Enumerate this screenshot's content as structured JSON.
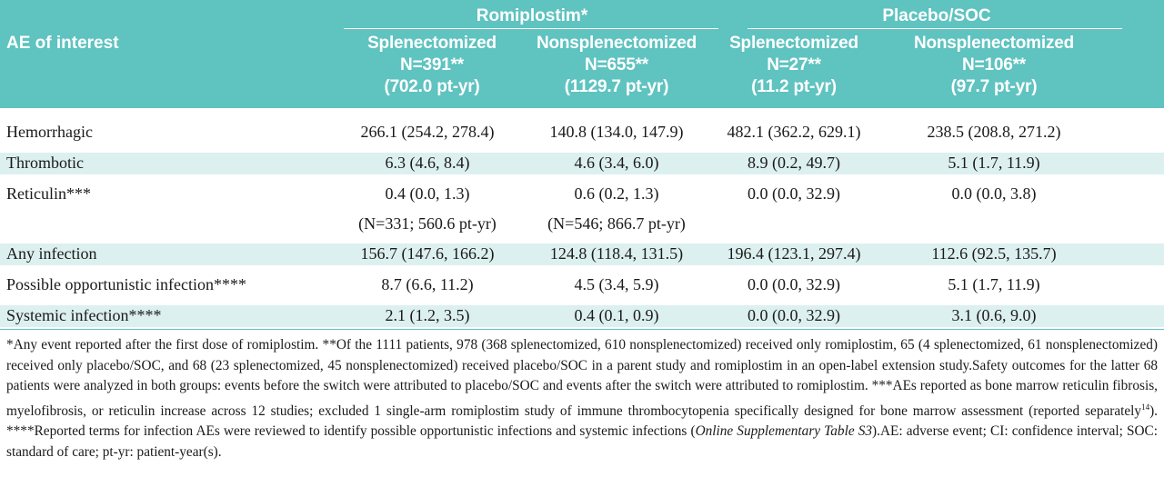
{
  "table": {
    "groups": [
      "Romiplostim*",
      "Placebo/SOC"
    ],
    "ae_header": "AE of interest",
    "columns": [
      {
        "name": "Splenectomized",
        "n": "N=391**",
        "pt": "(702.0 pt-yr)"
      },
      {
        "name": "Nonsplenectomized",
        "n": "N=655**",
        "pt": "(1129.7 pt-yr)"
      },
      {
        "name": "Splenectomized",
        "n": "N=27**",
        "pt": "(11.2 pt-yr)"
      },
      {
        "name": "Nonsplenectomized",
        "n": "N=106**",
        "pt": "(97.7 pt-yr)"
      }
    ],
    "rows": [
      {
        "label": "Hemorrhagic",
        "values": [
          "266.1 (254.2, 278.4)",
          "140.8 (134.0, 147.9)",
          "482.1 (362.2, 629.1)",
          "238.5 (208.8, 271.2)"
        ]
      },
      {
        "label": "Thrombotic",
        "values": [
          "6.3 (4.6, 8.4)",
          "4.6 (3.4, 6.0)",
          "8.9 (0.2, 49.7)",
          "5.1 (1.7, 11.9)"
        ]
      },
      {
        "label": "Reticulin***",
        "values": [
          "0.4 (0.0, 1.3)",
          "0.6 (0.2, 1.3)",
          "0.0 (0.0, 32.9)",
          "0.0 (0.0, 3.8)"
        ],
        "sub": [
          "(N=331; 560.6 pt-yr)",
          "(N=546; 866.7 pt-yr)"
        ]
      },
      {
        "label": "Any infection",
        "values": [
          "156.7 (147.6, 166.2)",
          "124.8 (118.4, 131.5)",
          "196.4 (123.1, 297.4)",
          "112.6 (92.5, 135.7)"
        ]
      },
      {
        "label": "Possible opportunistic infection****",
        "values": [
          "8.7 (6.6, 11.2)",
          "4.5 (3.4, 5.9)",
          "0.0 (0.0, 32.9)",
          "5.1 (1.7, 11.9)"
        ]
      },
      {
        "label": "Systemic infection****",
        "values": [
          "2.1 (1.2, 3.5)",
          "0.4 (0.1, 0.9)",
          "0.0 (0.0, 32.9)",
          "3.1 (0.6, 9.0)"
        ]
      }
    ]
  },
  "footnote": {
    "part1": "*Any event reported after the first dose of romiplostim. **Of the 1111 patients, 978 (368 splenectomized, 610 nonsplenectomized) received only romiplostim, 65 (4 splenectomized, 61 nonsplenectomized) received only placebo/SOC, and 68 (23 splenectomized, 45 nonsplenectomized) received placebo/SOC in a parent study and romiplostim in an open-label extension study.Safety outcomes for the latter 68 patients were analyzed in both groups: events before the switch were attributed to placebo/SOC and events after the switch were attributed to romiplostim. ***AEs reported as bone marrow reticulin fibrosis, myelofibrosis, or reticulin increase across 12 studies; excluded 1 single-arm romiplostim study of immune thrombocytopenia specifically designed for bone marrow assessment (reported separately",
    "ref": "14",
    "part2": "). ****Reported terms for infection AEs were reviewed to identify possible opportunistic infections and systemic infections (",
    "italic": "Online Supplementary Table S3",
    "part3": ").AE: adverse event; CI: confidence interval; SOC: standard of care; pt-yr: patient-year(s)."
  },
  "colors": {
    "header_bg": "#5fc3c0",
    "alt_row_bg": "#dcf0ef"
  }
}
